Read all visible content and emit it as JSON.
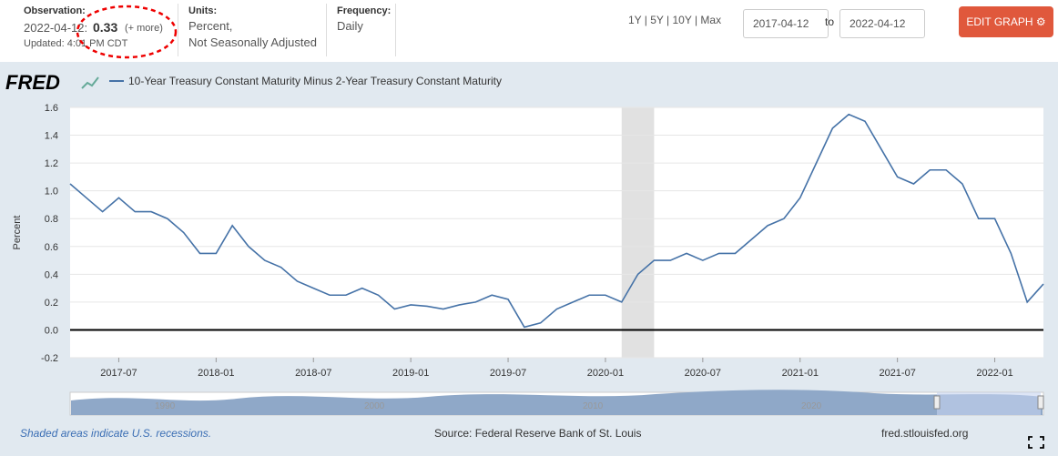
{
  "header": {
    "observation_label": "Observation:",
    "observation_date": "2022-04-12:",
    "observation_value": "0.33",
    "more": "(+ more)",
    "updated": "Updated: 4:01 PM CDT",
    "units_label": "Units:",
    "units_1": "Percent,",
    "units_2": "Not Seasonally Adjusted",
    "frequency_label": "Frequency:",
    "frequency": "Daily",
    "ranges": "1Y | 5Y | 10Y | Max",
    "date_from": "2017-04-12",
    "to": "to",
    "date_to": "2022-04-12",
    "edit": "EDIT GRAPH"
  },
  "logo": "FRED",
  "footer": {
    "recession_note": "Shaded areas indicate U.S. recessions.",
    "source": "Source: Federal Reserve Bank of St. Louis",
    "site": "fred.stlouisfed.org"
  },
  "navigator_labels": [
    "1990",
    "2000",
    "2010",
    "2020"
  ],
  "chart_data": {
    "type": "line",
    "y_label": "Percent",
    "xlim": [
      "2017-04",
      "2022-04"
    ],
    "xticks": [
      "2017-07",
      "2018-01",
      "2018-07",
      "2019-01",
      "2019-07",
      "2020-01",
      "2020-07",
      "2021-01",
      "2021-07",
      "2022-01"
    ],
    "ylim": [
      -0.2,
      1.6
    ],
    "yticks": [
      -0.2,
      {
        "value": 0,
        "label": "0.0"
      },
      0.2,
      0.4,
      0.6,
      0.8,
      {
        "value": 1,
        "label": "1.0"
      },
      1.2,
      1.4,
      1.6
    ],
    "grid": true,
    "recessions": [
      {
        "start": "2020-02",
        "end": "2020-04"
      }
    ],
    "x": [
      "2017-04",
      "2017-05",
      "2017-06",
      "2017-07",
      "2017-08",
      "2017-09",
      "2017-10",
      "2017-11",
      "2017-12",
      "2018-01",
      "2018-02",
      "2018-03",
      "2018-04",
      "2018-05",
      "2018-06",
      "2018-07",
      "2018-08",
      "2018-09",
      "2018-10",
      "2018-11",
      "2018-12",
      "2019-01",
      "2019-02",
      "2019-03",
      "2019-04",
      "2019-05",
      "2019-06",
      "2019-07",
      "2019-08",
      "2019-09",
      "2019-10",
      "2019-11",
      "2019-12",
      "2020-01",
      "2020-02",
      "2020-03",
      "2020-04",
      "2020-05",
      "2020-06",
      "2020-07",
      "2020-08",
      "2020-09",
      "2020-10",
      "2020-11",
      "2020-12",
      "2021-01",
      "2021-02",
      "2021-03",
      "2021-04",
      "2021-05",
      "2021-06",
      "2021-07",
      "2021-08",
      "2021-09",
      "2021-10",
      "2021-11",
      "2021-12",
      "2022-01",
      "2022-02",
      "2022-03",
      "2022-04"
    ],
    "series": [
      {
        "name": "10-Year Treasury Constant Maturity Minus 2-Year Treasury Constant Maturity",
        "color": "#4572a7",
        "values": [
          1.05,
          0.95,
          0.85,
          0.95,
          0.85,
          0.85,
          0.8,
          0.7,
          0.55,
          0.55,
          0.75,
          0.6,
          0.5,
          0.45,
          0.35,
          0.3,
          0.25,
          0.25,
          0.3,
          0.25,
          0.15,
          0.18,
          0.17,
          0.15,
          0.18,
          0.2,
          0.25,
          0.22,
          0.02,
          0.05,
          0.15,
          0.2,
          0.25,
          0.25,
          0.2,
          0.4,
          0.5,
          0.5,
          0.55,
          0.5,
          0.55,
          0.55,
          0.65,
          0.75,
          0.8,
          0.95,
          1.2,
          1.45,
          1.55,
          1.5,
          1.3,
          1.1,
          1.05,
          1.15,
          1.15,
          1.05,
          0.8,
          0.8,
          0.55,
          0.2,
          0.33
        ]
      }
    ]
  }
}
